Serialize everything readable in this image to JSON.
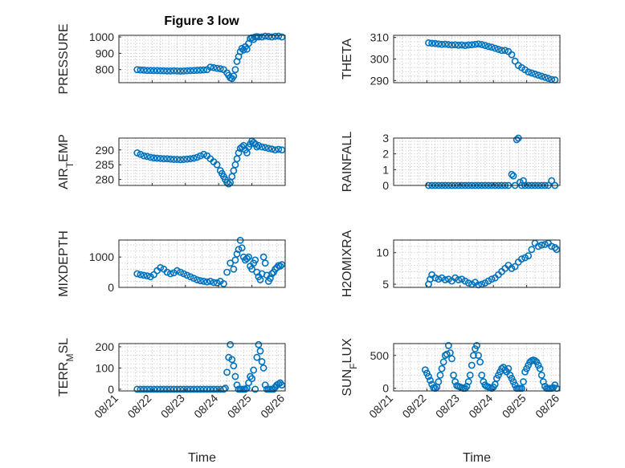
{
  "figure": {
    "title": "Figure 3 low",
    "marker_color": "#0072bd",
    "axis_color": "#262626"
  },
  "chart_data": [
    {
      "type": "scatter",
      "ylabel": "PRESSURE",
      "xlabel": "",
      "xlim": [
        0,
        5
      ],
      "ylim": [
        720,
        1010
      ],
      "yticks": [
        800,
        900,
        1000
      ],
      "xtick_labels": [],
      "grid": true,
      "series": [
        {
          "x": [
            0.55,
            0.65,
            0.75,
            0.85,
            0.95,
            1.05,
            1.15,
            1.25,
            1.35,
            1.45,
            1.55,
            1.65,
            1.75,
            1.85,
            1.95,
            2.05,
            2.15,
            2.25,
            2.35,
            2.45,
            2.55,
            2.65,
            2.75,
            2.85,
            2.95,
            3.05,
            3.15,
            3.25,
            3.3,
            3.35,
            3.4,
            3.45,
            3.5,
            3.55,
            3.6,
            3.65,
            3.7,
            3.75,
            3.8,
            3.85,
            3.9,
            3.95,
            4.0,
            4.05,
            4.1,
            4.15,
            4.2,
            4.3,
            4.4,
            4.5,
            4.6,
            4.7,
            4.8,
            4.9
          ],
          "y": [
            800,
            798,
            797,
            795,
            795,
            794,
            794,
            793,
            793,
            792,
            792,
            793,
            792,
            791,
            792,
            793,
            794,
            795,
            796,
            797,
            798,
            800,
            815,
            812,
            808,
            805,
            800,
            780,
            765,
            750,
            745,
            760,
            800,
            850,
            880,
            910,
            930,
            920,
            940,
            925,
            960,
            990,
            995,
            985,
            1000,
            1002,
            1000,
            1000,
            1005,
            1003,
            1000,
            1004,
            1005,
            1000
          ]
        }
      ]
    },
    {
      "type": "scatter",
      "ylabel": "THETA",
      "xlabel": "",
      "xlim": [
        0,
        5
      ],
      "ylim": [
        289,
        311
      ],
      "yticks": [
        290,
        300,
        310
      ],
      "xtick_labels": [],
      "grid": true,
      "series": [
        {
          "x": [
            1.05,
            1.15,
            1.25,
            1.35,
            1.45,
            1.55,
            1.65,
            1.75,
            1.85,
            1.95,
            2.05,
            2.15,
            2.25,
            2.35,
            2.45,
            2.55,
            2.65,
            2.75,
            2.85,
            2.95,
            3.05,
            3.15,
            3.25,
            3.35,
            3.45,
            3.55,
            3.65,
            3.75,
            3.85,
            3.95,
            4.05,
            4.15,
            4.25,
            4.35,
            4.45,
            4.55,
            4.65,
            4.75,
            4.85
          ],
          "y": [
            307.5,
            307.3,
            307.2,
            307,
            306.8,
            306.9,
            306.7,
            306.5,
            306.6,
            306.4,
            306.5,
            306.3,
            306.5,
            306.6,
            306.8,
            307,
            306.7,
            306.3,
            305.8,
            305.5,
            305,
            304.5,
            304,
            304,
            303.5,
            302,
            299,
            297,
            296,
            295,
            294,
            293.5,
            293,
            292.5,
            292,
            291.5,
            291,
            290.5,
            290.3
          ]
        }
      ]
    },
    {
      "type": "scatter",
      "ylabel": "AIR_TEMP",
      "xlabel": "",
      "xlim": [
        0,
        5
      ],
      "ylim": [
        278,
        294
      ],
      "yticks": [
        280,
        285,
        290
      ],
      "xtick_labels": [],
      "grid": true,
      "series": [
        {
          "x": [
            0.55,
            0.65,
            0.75,
            0.85,
            0.95,
            1.05,
            1.15,
            1.25,
            1.35,
            1.45,
            1.55,
            1.65,
            1.75,
            1.85,
            1.95,
            2.05,
            2.15,
            2.25,
            2.35,
            2.45,
            2.55,
            2.65,
            2.75,
            2.85,
            2.95,
            3.05,
            3.1,
            3.15,
            3.2,
            3.25,
            3.3,
            3.35,
            3.4,
            3.45,
            3.5,
            3.55,
            3.6,
            3.65,
            3.7,
            3.75,
            3.8,
            3.85,
            3.9,
            3.95,
            4.0,
            4.05,
            4.1,
            4.15,
            4.2,
            4.3,
            4.4,
            4.5,
            4.6,
            4.7,
            4.8,
            4.9
          ],
          "y": [
            289,
            288.5,
            288,
            287.8,
            287.5,
            287.3,
            287.2,
            287.1,
            287,
            287,
            286.9,
            286.8,
            286.8,
            286.7,
            286.8,
            286.9,
            287,
            287.2,
            287.5,
            288,
            288.5,
            288,
            287,
            286,
            285,
            283,
            282,
            281,
            280,
            279,
            278.5,
            279,
            281,
            283,
            285,
            287,
            289,
            290.5,
            291,
            291.5,
            290,
            289,
            291,
            292,
            293,
            292.5,
            292,
            291,
            291.5,
            291,
            290.8,
            290.5,
            290.3,
            290,
            290.2,
            290
          ]
        }
      ]
    },
    {
      "type": "scatter",
      "ylabel": "RAINFALL",
      "xlabel": "",
      "xlim": [
        0,
        5
      ],
      "ylim": [
        0,
        3
      ],
      "yticks": [
        0,
        1,
        2,
        3
      ],
      "xtick_labels": [],
      "grid": true,
      "series": [
        {
          "x": [
            1.05,
            1.15,
            1.25,
            1.35,
            1.45,
            1.55,
            1.65,
            1.75,
            1.85,
            1.95,
            2.05,
            2.15,
            2.25,
            2.35,
            2.45,
            2.55,
            2.65,
            2.75,
            2.85,
            2.95,
            3.05,
            3.15,
            3.25,
            3.35,
            3.45,
            3.55,
            3.6,
            3.65,
            3.7,
            3.75,
            3.8,
            3.85,
            3.9,
            3.95,
            4.05,
            4.15,
            4.25,
            4.35,
            4.45,
            4.55,
            4.65,
            4.75,
            4.85
          ],
          "y": [
            0,
            0,
            0,
            0,
            0,
            0,
            0,
            0,
            0,
            0,
            0,
            0,
            0,
            0,
            0,
            0,
            0,
            0,
            0,
            0,
            0,
            0,
            0,
            0,
            0,
            0.7,
            0.6,
            0,
            2.9,
            3,
            0.2,
            0,
            0.3,
            0,
            0,
            0,
            0,
            0,
            0,
            0,
            0,
            0.3,
            0
          ]
        }
      ]
    },
    {
      "type": "scatter",
      "ylabel": "MIXDEPTH",
      "xlabel": "",
      "xlim": [
        0,
        5
      ],
      "ylim": [
        0,
        1560
      ],
      "yticks": [
        0,
        1000
      ],
      "xtick_labels": [],
      "grid": true,
      "series": [
        {
          "x": [
            0.55,
            0.65,
            0.75,
            0.85,
            0.95,
            1.05,
            1.15,
            1.25,
            1.35,
            1.45,
            1.55,
            1.65,
            1.75,
            1.85,
            1.95,
            2.05,
            2.15,
            2.25,
            2.35,
            2.45,
            2.55,
            2.65,
            2.75,
            2.85,
            2.95,
            3.05,
            3.15,
            3.25,
            3.35,
            3.45,
            3.5,
            3.55,
            3.6,
            3.65,
            3.7,
            3.75,
            3.8,
            3.85,
            3.9,
            3.95,
            4.0,
            4.05,
            4.1,
            4.15,
            4.2,
            4.25,
            4.3,
            4.35,
            4.4,
            4.45,
            4.5,
            4.55,
            4.6,
            4.65,
            4.7,
            4.75,
            4.8,
            4.85,
            4.9
          ],
          "y": [
            450,
            420,
            400,
            380,
            350,
            420,
            550,
            650,
            600,
            500,
            450,
            480,
            550,
            500,
            450,
            400,
            350,
            300,
            250,
            220,
            200,
            180,
            200,
            160,
            150,
            200,
            120,
            500,
            800,
            600,
            900,
            1100,
            1250,
            1550,
            1300,
            1000,
            900,
            950,
            1000,
            700,
            600,
            800,
            900,
            500,
            350,
            250,
            450,
            1000,
            800,
            400,
            200,
            300,
            450,
            500,
            600,
            650,
            720,
            700,
            750
          ]
        }
      ]
    },
    {
      "type": "scatter",
      "ylabel": "H2OMIXRA",
      "xlabel": "",
      "xlim": [
        0,
        5
      ],
      "ylim": [
        4.5,
        12
      ],
      "yticks": [
        5,
        10
      ],
      "xtick_labels": [],
      "grid": true,
      "series": [
        {
          "x": [
            1.05,
            1.1,
            1.15,
            1.25,
            1.35,
            1.45,
            1.55,
            1.65,
            1.75,
            1.85,
            1.95,
            2.05,
            2.15,
            2.25,
            2.35,
            2.45,
            2.55,
            2.65,
            2.75,
            2.85,
            2.95,
            3.05,
            3.15,
            3.25,
            3.35,
            3.45,
            3.55,
            3.65,
            3.75,
            3.85,
            3.95,
            4.05,
            4.15,
            4.25,
            4.35,
            4.45,
            4.55,
            4.65,
            4.75,
            4.85,
            4.9
          ],
          "y": [
            5,
            5.8,
            6.5,
            6,
            5.8,
            6,
            5.7,
            5.8,
            5.5,
            6,
            5.7,
            5.8,
            5.5,
            5.2,
            5,
            5.3,
            4.9,
            5,
            5.2,
            5.5,
            5.8,
            6,
            6.5,
            7,
            7.5,
            8,
            7.5,
            7.8,
            8.5,
            9,
            9.2,
            9.5,
            10.5,
            11.5,
            11,
            11.2,
            11.3,
            11.5,
            11,
            10.8,
            10.5
          ]
        }
      ]
    },
    {
      "type": "scatter",
      "ylabel": "TERR_MSL",
      "xlabel": "Time",
      "xlim": [
        0,
        5
      ],
      "ylim": [
        -8,
        215
      ],
      "yticks": [
        0,
        100,
        200
      ],
      "xtick_labels": [
        "08/21",
        "08/22",
        "08/23",
        "08/24",
        "08/25",
        "08/26"
      ],
      "grid": true,
      "series": [
        {
          "x": [
            0.55,
            0.65,
            0.75,
            0.85,
            0.95,
            1.05,
            1.15,
            1.25,
            1.35,
            1.45,
            1.55,
            1.65,
            1.75,
            1.85,
            1.95,
            2.05,
            2.15,
            2.25,
            2.35,
            2.45,
            2.55,
            2.65,
            2.75,
            2.85,
            2.95,
            3.05,
            3.15,
            3.2,
            3.25,
            3.3,
            3.35,
            3.4,
            3.45,
            3.5,
            3.55,
            3.6,
            3.65,
            3.7,
            3.75,
            3.8,
            3.85,
            3.9,
            3.95,
            4.0,
            4.05,
            4.1,
            4.15,
            4.2,
            4.25,
            4.3,
            4.35,
            4.4,
            4.45,
            4.5,
            4.55,
            4.6,
            4.65,
            4.7,
            4.75,
            4.8,
            4.85,
            4.9
          ],
          "y": [
            0,
            0,
            0,
            0,
            0,
            0,
            0,
            0,
            0,
            0,
            0,
            0,
            0,
            0,
            0,
            0,
            0,
            0,
            0,
            0,
            0,
            0,
            0,
            0,
            0,
            0,
            0,
            5,
            80,
            150,
            210,
            140,
            110,
            60,
            20,
            0,
            0,
            0,
            0,
            0,
            5,
            30,
            60,
            50,
            90,
            0,
            150,
            210,
            180,
            130,
            100,
            20,
            0,
            0,
            0,
            0,
            0,
            10,
            20,
            25,
            30,
            20
          ]
        }
      ]
    },
    {
      "type": "scatter",
      "ylabel": "SUN_FLUX",
      "xlabel": "Time",
      "xlim": [
        0,
        5
      ],
      "ylim": [
        -40,
        680
      ],
      "yticks": [
        0,
        500
      ],
      "xtick_labels": [
        "08/21",
        "08/22",
        "08/23",
        "08/24",
        "08/25",
        "08/26"
      ],
      "grid": true,
      "series": [
        {
          "x": [
            0.95,
            1.0,
            1.05,
            1.1,
            1.15,
            1.2,
            1.25,
            1.3,
            1.35,
            1.4,
            1.45,
            1.5,
            1.55,
            1.6,
            1.65,
            1.7,
            1.75,
            1.8,
            1.85,
            1.9,
            1.95,
            2.0,
            2.05,
            2.1,
            2.15,
            2.2,
            2.25,
            2.3,
            2.35,
            2.4,
            2.45,
            2.5,
            2.55,
            2.6,
            2.65,
            2.7,
            2.75,
            2.8,
            2.85,
            2.9,
            2.95,
            3.0,
            3.05,
            3.1,
            3.15,
            3.2,
            3.25,
            3.3,
            3.35,
            3.4,
            3.45,
            3.5,
            3.55,
            3.6,
            3.65,
            3.7,
            3.75,
            3.8,
            3.85,
            3.9,
            3.95,
            4.0,
            4.05,
            4.1,
            4.15,
            4.2,
            4.25,
            4.3,
            4.35,
            4.4,
            4.45,
            4.5,
            4.55,
            4.6,
            4.65,
            4.7,
            4.75,
            4.8,
            4.85,
            4.9
          ],
          "y": [
            280,
            230,
            180,
            120,
            60,
            10,
            0,
            20,
            100,
            200,
            300,
            400,
            500,
            520,
            650,
            540,
            450,
            200,
            100,
            40,
            30,
            20,
            10,
            0,
            0,
            30,
            100,
            200,
            350,
            500,
            600,
            650,
            500,
            400,
            200,
            100,
            50,
            30,
            20,
            10,
            0,
            20,
            60,
            150,
            200,
            250,
            300,
            320,
            280,
            250,
            300,
            200,
            150,
            100,
            50,
            0,
            0,
            0,
            0,
            100,
            250,
            300,
            350,
            400,
            420,
            430,
            420,
            400,
            350,
            300,
            200,
            100,
            30,
            0,
            0,
            0,
            0,
            10,
            50,
            0
          ]
        }
      ]
    }
  ]
}
